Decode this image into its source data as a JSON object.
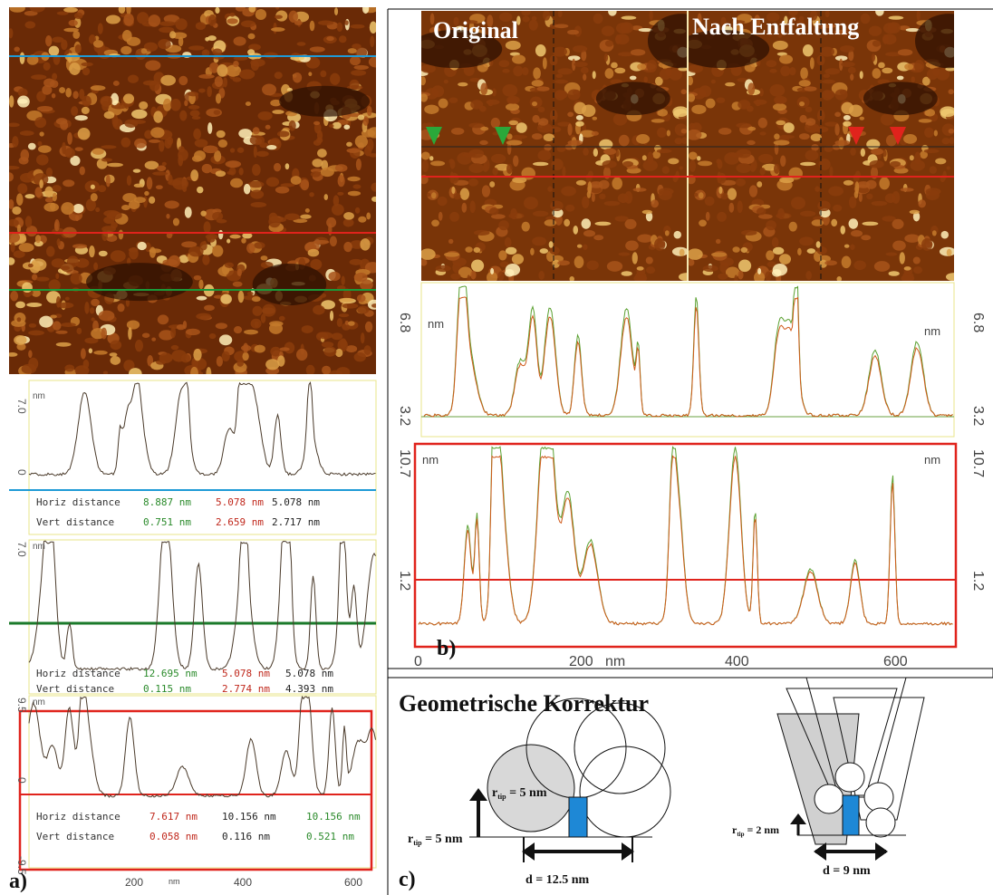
{
  "panel_a": {
    "label": "a)",
    "profiles": [
      {
        "y_top": "7.0",
        "y_zero": "0",
        "unit": "nm",
        "horiz_label": "Horiz distance",
        "horiz": [
          "8.887 nm",
          "5.078 nm",
          "5.078 nm"
        ],
        "vert_label": "Vert distance",
        "vert": [
          "0.751 nm",
          "2.659 nm",
          "2.717 nm"
        ]
      },
      {
        "y_top": "7.0",
        "unit": "nm",
        "horiz_label": "Horiz distance",
        "horiz": [
          "12.695 nm",
          "5.078 nm",
          "5.078 nm"
        ],
        "vert_label": "Vert distance",
        "vert": [
          "0.115 nm",
          "2.774 nm",
          "4.393 nm"
        ]
      },
      {
        "y_top": "9.5",
        "y_zero": "0",
        "y_bottom": "-9.5",
        "unit": "nm",
        "horiz_label": "Horiz distance",
        "horiz": [
          "7.617 nm",
          "10.156 nm",
          "10.156 nm"
        ],
        "vert_label": "Vert distance",
        "vert": [
          "0.058 nm",
          "0.116 nm",
          "0.521 nm"
        ]
      }
    ],
    "x_ticks": [
      "200",
      "400",
      "600"
    ],
    "x_unit": "nm"
  },
  "panel_b": {
    "label": "b)",
    "image_titles": [
      "Original",
      "Nach Entfaltung"
    ],
    "profile_top": {
      "y_high": "6.8",
      "y_low": "3.2",
      "unit": "nm"
    },
    "profile_bottom": {
      "y_high": "10.7",
      "y_low": "1.2",
      "unit": "nm"
    },
    "x_ticks": [
      "0",
      "200",
      "400",
      "600"
    ],
    "x_unit": "nm"
  },
  "panel_c": {
    "label": "c)",
    "title": "Geometrische Korrektur",
    "left": {
      "r_tip": "r",
      "r_sub": "tip",
      "r_value": " = 5 nm",
      "inner_value": " = 5 nm",
      "d": "d = 12.5 nm"
    },
    "right": {
      "r_tip": "r",
      "r_sub": "tip",
      "r_value": " = 2 nm",
      "d": "d = 9 nm"
    }
  }
}
